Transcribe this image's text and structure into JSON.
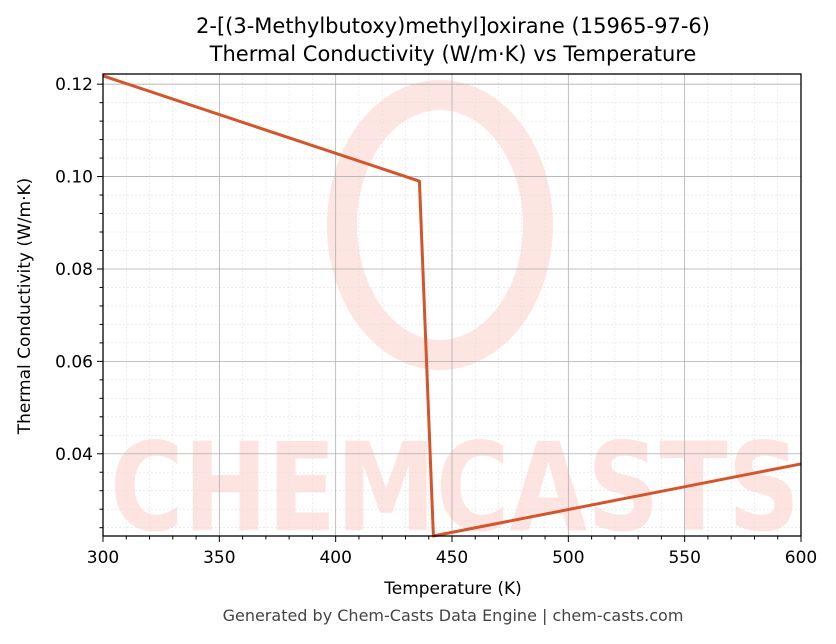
{
  "title_line1": "2-[(3-Methylbutoxy)methyl]oxirane (15965-97-6)",
  "title_line2": "Thermal Conductivity (W/m·K) vs Temperature",
  "footer": "Generated by Chem-Casts Data Engine | chem-casts.com",
  "watermark": "CHEMCASTS",
  "colors": {
    "line": "#d4552a",
    "watermark": "#fde0dc",
    "grid_major": "#b0b0b0",
    "grid_minor": "#e0e0e0"
  },
  "chart_data": {
    "type": "line",
    "title": "2-[(3-Methylbutoxy)methyl]oxirane (15965-97-6) Thermal Conductivity (W/m·K) vs Temperature",
    "xlabel": "Temperature (K)",
    "ylabel": "Thermal Conductivity (W/m·K)",
    "xlim": [
      300,
      600
    ],
    "ylim": [
      0.0222,
      0.1222
    ],
    "x_ticks": [
      300,
      350,
      400,
      450,
      500,
      550,
      600
    ],
    "x_tick_labels": [
      "300",
      "350",
      "400",
      "450",
      "500",
      "550",
      "600"
    ],
    "y_ticks": [
      0.04,
      0.06,
      0.08,
      0.1,
      0.12
    ],
    "y_tick_labels": [
      "0.04",
      "0.06",
      "0.08",
      "0.10",
      "0.12"
    ],
    "grid": true,
    "legend": "none",
    "series": [
      {
        "x": [
          300,
          436,
          442,
          600
        ],
        "y": [
          0.1218,
          0.099,
          0.0222,
          0.0378
        ]
      }
    ]
  }
}
